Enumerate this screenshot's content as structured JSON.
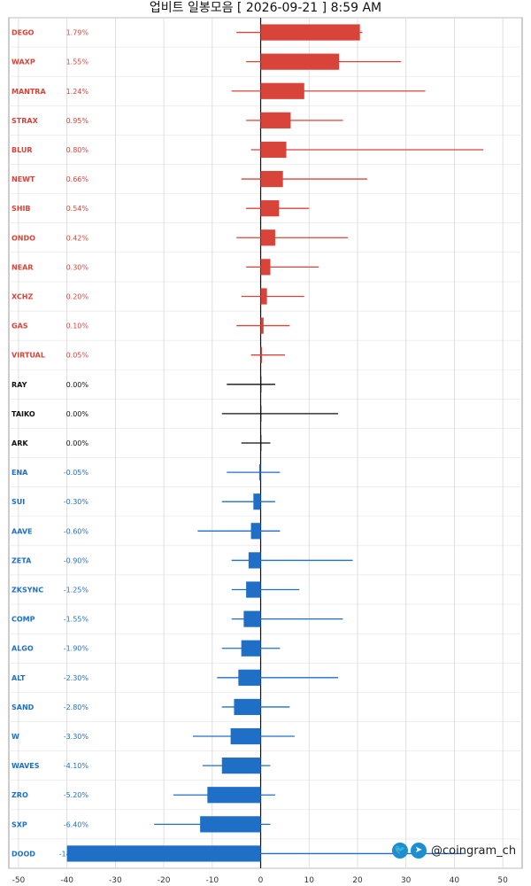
{
  "header": {
    "title": "업비트 일봉모음 [ 2026-09-21 ]  8:59 AM"
  },
  "branding": {
    "handle": "@coingram_ch",
    "twitter_icon": "twitter-bird-icon",
    "telegram_icon": "telegram-plane-icon"
  },
  "colors": {
    "up": "#d9443a",
    "flat": "#111111",
    "down": "#1f6fc7"
  },
  "chart_data": {
    "type": "bar",
    "orientation": "horizontal",
    "xlim": [
      -52,
      54
    ],
    "xticks": [
      -50,
      -40,
      -30,
      -20,
      -10,
      0,
      10,
      20,
      30,
      40,
      50
    ],
    "grid": true,
    "rows": [
      {
        "label": "DEGO",
        "pct": "1.79%",
        "value": 20.5,
        "range": [
          -5,
          21
        ],
        "dir": "up"
      },
      {
        "label": "WAXP",
        "pct": "1.55%",
        "value": 16.2,
        "range": [
          -3,
          29
        ],
        "dir": "up"
      },
      {
        "label": "MANTRA",
        "pct": "1.24%",
        "value": 9.0,
        "range": [
          -6,
          34
        ],
        "dir": "up"
      },
      {
        "label": "STRAX",
        "pct": "0.95%",
        "value": 6.2,
        "range": [
          -3,
          17
        ],
        "dir": "up"
      },
      {
        "label": "BLUR",
        "pct": "0.80%",
        "value": 5.3,
        "range": [
          -2,
          46
        ],
        "dir": "up"
      },
      {
        "label": "NEWT",
        "pct": "0.66%",
        "value": 4.6,
        "range": [
          -4,
          22
        ],
        "dir": "up"
      },
      {
        "label": "SHIB",
        "pct": "0.54%",
        "value": 3.8,
        "range": [
          -3,
          10
        ],
        "dir": "up"
      },
      {
        "label": "ONDO",
        "pct": "0.42%",
        "value": 3.0,
        "range": [
          -5,
          18
        ],
        "dir": "up"
      },
      {
        "label": "NEAR",
        "pct": "0.30%",
        "value": 2.0,
        "range": [
          -3,
          12
        ],
        "dir": "up"
      },
      {
        "label": "XCHZ",
        "pct": "0.20%",
        "value": 1.3,
        "range": [
          -4,
          9
        ],
        "dir": "up"
      },
      {
        "label": "GAS",
        "pct": "0.10%",
        "value": 0.6,
        "range": [
          -5,
          6
        ],
        "dir": "up"
      },
      {
        "label": "VIRTUAL",
        "pct": "0.05%",
        "value": 0.3,
        "range": [
          -2,
          5
        ],
        "dir": "up"
      },
      {
        "label": "RAY",
        "pct": "0.00%",
        "value": 0.0,
        "range": [
          -7,
          3
        ],
        "dir": "flat"
      },
      {
        "label": "TAIKO",
        "pct": "0.00%",
        "value": 0.0,
        "range": [
          -8,
          16
        ],
        "dir": "flat"
      },
      {
        "label": "ARK",
        "pct": "0.00%",
        "value": 0.0,
        "range": [
          -4,
          2
        ],
        "dir": "flat"
      },
      {
        "label": "ENA",
        "pct": "-0.05%",
        "value": -0.3,
        "range": [
          -7,
          4
        ],
        "dir": "down"
      },
      {
        "label": "SUI",
        "pct": "-0.30%",
        "value": -1.5,
        "range": [
          -8,
          3
        ],
        "dir": "down"
      },
      {
        "label": "AAVE",
        "pct": "-0.60%",
        "value": -2.0,
        "range": [
          -13,
          4
        ],
        "dir": "down"
      },
      {
        "label": "ZETA",
        "pct": "-0.90%",
        "value": -2.5,
        "range": [
          -6,
          19
        ],
        "dir": "down"
      },
      {
        "label": "ZKSYNC",
        "pct": "-1.25%",
        "value": -3.0,
        "range": [
          -6,
          8
        ],
        "dir": "down"
      },
      {
        "label": "COMP",
        "pct": "-1.55%",
        "value": -3.5,
        "range": [
          -6,
          17
        ],
        "dir": "down"
      },
      {
        "label": "ALGO",
        "pct": "-1.90%",
        "value": -4.0,
        "range": [
          -8,
          4
        ],
        "dir": "down"
      },
      {
        "label": "ALT",
        "pct": "-2.30%",
        "value": -4.6,
        "range": [
          -9,
          16
        ],
        "dir": "down"
      },
      {
        "label": "SAND",
        "pct": "-2.80%",
        "value": -5.5,
        "range": [
          -8,
          6
        ],
        "dir": "down"
      },
      {
        "label": "W",
        "pct": "-3.30%",
        "value": -6.2,
        "range": [
          -14,
          7
        ],
        "dir": "down"
      },
      {
        "label": "WAVES",
        "pct": "-4.10%",
        "value": -8.0,
        "range": [
          -12,
          2
        ],
        "dir": "down"
      },
      {
        "label": "ZRO",
        "pct": "-5.20%",
        "value": -11.0,
        "range": [
          -18,
          3
        ],
        "dir": "down"
      },
      {
        "label": "SXP",
        "pct": "-6.40%",
        "value": -12.5,
        "range": [
          -22,
          2
        ],
        "dir": "down"
      },
      {
        "label": "DOOD",
        "pct": "-14.97%",
        "value": -40.0,
        "range": [
          -40,
          42
        ],
        "dir": "down"
      }
    ]
  }
}
